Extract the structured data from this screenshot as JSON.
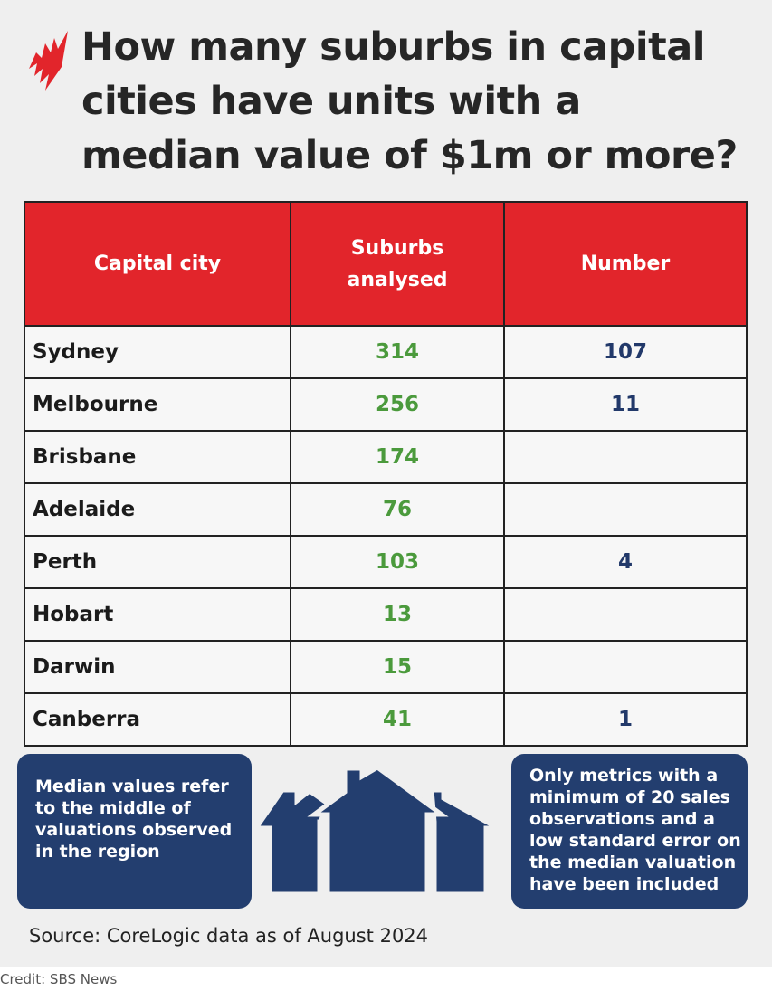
{
  "title": "How many suburbs in capital cities have units with a median value of $1m or more?",
  "chart_data": {
    "type": "table",
    "columns": [
      "Capital city",
      "Suburbs analysed",
      "Number"
    ],
    "rows": [
      {
        "city": "Sydney",
        "analysed": "314",
        "number": "107"
      },
      {
        "city": "Melbourne",
        "analysed": "256",
        "number": "11"
      },
      {
        "city": "Brisbane",
        "analysed": "174",
        "number": ""
      },
      {
        "city": "Adelaide",
        "analysed": "76",
        "number": ""
      },
      {
        "city": "Perth",
        "analysed": "103",
        "number": "4"
      },
      {
        "city": "Hobart",
        "analysed": "13",
        "number": ""
      },
      {
        "city": "Darwin",
        "analysed": "15",
        "number": ""
      },
      {
        "city": "Canberra",
        "analysed": "41",
        "number": "1"
      }
    ]
  },
  "notes": {
    "left": "Median values refer to the middle of valuations observed in the region",
    "right": "Only metrics with a minimum of 20 sales observations and a low standard error on the median valuation have been included"
  },
  "source": "Source: CoreLogic data as of August 2024",
  "credit": "Credit: SBS News",
  "colors": {
    "header": "#e2252b",
    "analysed": "#4b9a3c",
    "number": "#22396a",
    "box": "#233e6f"
  }
}
